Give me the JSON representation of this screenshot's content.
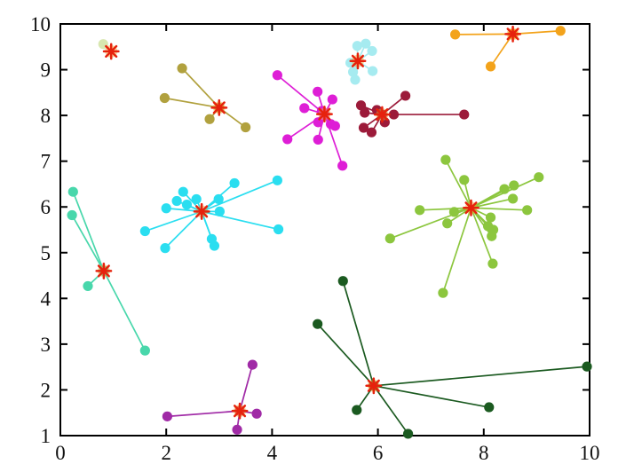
{
  "chart_data": {
    "type": "scatter",
    "title": "",
    "xlabel": "",
    "ylabel": "",
    "xlim": [
      0,
      10
    ],
    "ylim": [
      1,
      10
    ],
    "x_ticks": [
      0,
      2,
      4,
      6,
      8,
      10
    ],
    "x_tick_labels": [
      "0",
      "2",
      "4",
      "6",
      "8",
      "10"
    ],
    "y_ticks": [
      1,
      2,
      3,
      4,
      5,
      6,
      7,
      8,
      9,
      10
    ],
    "y_tick_labels": [
      "1",
      "2",
      "3",
      "4",
      "5",
      "6",
      "7",
      "8",
      "9",
      "10"
    ],
    "grid": false,
    "legend": "none",
    "description": "K-means style clustering plot: colored point clusters joined by lines to red asterisk centroids",
    "centroid_marker": {
      "shape": "asterisk",
      "color": "#e6220d",
      "halo_color": "#f5a62a"
    },
    "clusters": [
      {
        "name": "pale-green",
        "color": "#d8e7b0",
        "centroid": {
          "x": 0.96,
          "y": 9.4
        },
        "centroid_dot": null,
        "points": [
          [
            0.81,
            9.56
          ]
        ]
      },
      {
        "name": "khaki",
        "color": "#b1a13e",
        "centroid": {
          "x": 3.0,
          "y": 8.17
        },
        "centroid_dot": "#b1a13e",
        "points": [
          [
            2.3,
            9.03
          ],
          [
            1.97,
            8.38
          ],
          [
            2.82,
            7.92
          ],
          [
            3.5,
            7.74
          ]
        ]
      },
      {
        "name": "pale-cyan",
        "color": "#a6ebf0",
        "centroid": {
          "x": 5.62,
          "y": 9.19
        },
        "centroid_dot": null,
        "points": [
          [
            5.61,
            9.52
          ],
          [
            5.77,
            9.57
          ],
          [
            5.89,
            9.41
          ],
          [
            5.48,
            9.15
          ],
          [
            5.53,
            8.95
          ],
          [
            5.9,
            8.97
          ],
          [
            5.57,
            8.78
          ]
        ]
      },
      {
        "name": "magenta",
        "color": "#de1ed6",
        "centroid": {
          "x": 4.99,
          "y": 8.03
        },
        "centroid_dot": "#de1ed6",
        "points": [
          [
            4.1,
            8.88
          ],
          [
            4.86,
            8.52
          ],
          [
            5.14,
            8.35
          ],
          [
            4.61,
            8.16
          ],
          [
            4.94,
            8.1
          ],
          [
            4.87,
            7.85
          ],
          [
            5.11,
            7.81
          ],
          [
            5.19,
            7.77
          ],
          [
            4.29,
            7.48
          ],
          [
            4.87,
            7.47
          ],
          [
            5.33,
            6.9
          ]
        ]
      },
      {
        "name": "dark-red",
        "color": "#9c1b3a",
        "centroid": {
          "x": 6.08,
          "y": 8.02
        },
        "centroid_dot": "#9c1b3a",
        "points": [
          [
            6.52,
            8.43
          ],
          [
            5.68,
            8.22
          ],
          [
            5.98,
            8.12
          ],
          [
            5.75,
            8.06
          ],
          [
            6.3,
            8.02
          ],
          [
            6.13,
            7.85
          ],
          [
            5.73,
            7.73
          ],
          [
            5.88,
            7.63
          ],
          [
            7.63,
            8.02
          ]
        ]
      },
      {
        "name": "orange",
        "color": "#f3a31b",
        "centroid": {
          "x": 8.55,
          "y": 9.78
        },
        "centroid_dot": "#f3a31b",
        "points": [
          [
            7.46,
            9.77
          ],
          [
            9.45,
            9.85
          ],
          [
            8.13,
            9.07
          ]
        ]
      },
      {
        "name": "cyan",
        "color": "#2adef0",
        "centroid": {
          "x": 2.67,
          "y": 5.9
        },
        "centroid_dot": null,
        "points": [
          [
            2.32,
            6.33
          ],
          [
            2.2,
            6.13
          ],
          [
            2.0,
            5.97
          ],
          [
            2.39,
            6.05
          ],
          [
            2.57,
            6.17
          ],
          [
            2.99,
            6.17
          ],
          [
            3.01,
            5.9
          ],
          [
            3.29,
            6.52
          ],
          [
            4.1,
            6.58
          ],
          [
            1.6,
            5.47
          ],
          [
            1.98,
            5.1
          ],
          [
            2.86,
            5.3
          ],
          [
            2.91,
            5.15
          ],
          [
            4.12,
            5.51
          ]
        ]
      },
      {
        "name": "turquoise",
        "color": "#48d7ab",
        "centroid": {
          "x": 0.82,
          "y": 4.6
        },
        "centroid_dot": "#48d7ab",
        "points": [
          [
            0.24,
            6.33
          ],
          [
            0.22,
            5.82
          ],
          [
            0.52,
            4.27
          ],
          [
            1.6,
            2.86
          ]
        ]
      },
      {
        "name": "yellow-green",
        "color": "#8cc63e",
        "centroid": {
          "x": 7.76,
          "y": 5.98
        },
        "centroid_dot": null,
        "points": [
          [
            7.28,
            7.03
          ],
          [
            7.63,
            6.59
          ],
          [
            8.39,
            6.39
          ],
          [
            8.57,
            6.47
          ],
          [
            9.04,
            6.65
          ],
          [
            8.55,
            6.18
          ],
          [
            8.82,
            5.93
          ],
          [
            6.79,
            5.93
          ],
          [
            7.44,
            5.89
          ],
          [
            7.31,
            5.64
          ],
          [
            8.13,
            5.77
          ],
          [
            8.08,
            5.58
          ],
          [
            8.18,
            5.5
          ],
          [
            8.15,
            5.36
          ],
          [
            6.23,
            5.31
          ],
          [
            8.17,
            4.76
          ],
          [
            7.23,
            4.12
          ]
        ]
      },
      {
        "name": "dark-green",
        "color": "#1b5a20",
        "centroid": {
          "x": 5.92,
          "y": 2.09
        },
        "centroid_dot": "#7a4824",
        "points": [
          [
            5.34,
            4.38
          ],
          [
            4.86,
            3.44
          ],
          [
            5.6,
            1.56
          ],
          [
            6.57,
            1.04
          ],
          [
            8.1,
            1.62
          ],
          [
            9.95,
            2.51
          ]
        ]
      },
      {
        "name": "purple",
        "color": "#a02aa6",
        "centroid": {
          "x": 3.39,
          "y": 1.54
        },
        "centroid_dot": "#d02a5e",
        "points": [
          [
            2.02,
            1.42
          ],
          [
            3.63,
            2.55
          ],
          [
            3.71,
            1.48
          ],
          [
            3.34,
            1.13
          ]
        ]
      }
    ]
  },
  "figure": {
    "background": "#ffffff",
    "plot_background": "#ffffff",
    "axis_color": "#000000"
  }
}
